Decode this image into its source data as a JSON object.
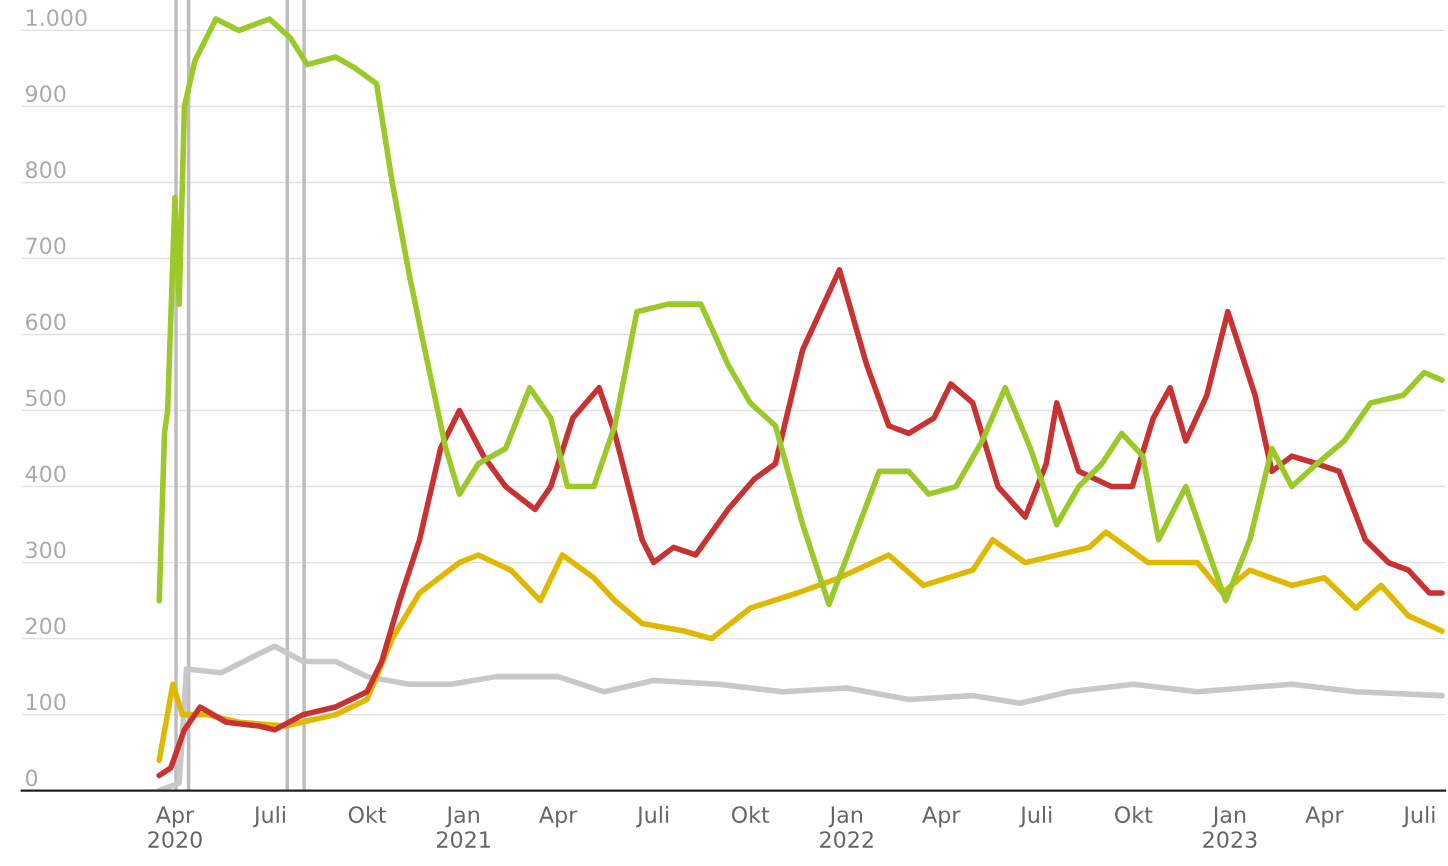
{
  "chart_data": {
    "type": "line",
    "xlim": [
      "2019-11-07",
      "2023-07-25"
    ],
    "ylim": [
      0,
      1040
    ],
    "yticks": [
      0,
      100,
      200,
      300,
      400,
      500,
      600,
      700,
      800,
      900,
      {
        "value": 1000,
        "label": "1.000"
      }
    ],
    "xticks": [
      {
        "value": "2020-04-01",
        "label": "Apr\n2020"
      },
      {
        "value": "2020-07-01",
        "label": "Juli"
      },
      {
        "value": "2020-10-01",
        "label": "Okt"
      },
      {
        "value": "2021-01-01",
        "label": "Jan\n2021"
      },
      {
        "value": "2021-04-01",
        "label": "Apr"
      },
      {
        "value": "2021-07-01",
        "label": "Juli"
      },
      {
        "value": "2021-10-01",
        "label": "Okt"
      },
      {
        "value": "2022-01-01",
        "label": "Jan\n2022"
      },
      {
        "value": "2022-04-01",
        "label": "Apr"
      },
      {
        "value": "2022-07-01",
        "label": "Juli"
      },
      {
        "value": "2022-10-01",
        "label": "Okt"
      },
      {
        "value": "2023-01-01",
        "label": "Jan\n2023"
      },
      {
        "value": "2023-04-01",
        "label": "Apr"
      },
      {
        "value": "2023-07-01",
        "label": "Juli"
      }
    ],
    "grid": "y",
    "line_style": "solid",
    "ref_lines": [
      {
        "axis": "x",
        "value": "2020-04-02",
        "color": "#bdbdbd"
      },
      {
        "axis": "x",
        "value": "2020-04-14",
        "color": "#bdbdbd"
      },
      {
        "axis": "x",
        "value": "2020-07-17",
        "color": "#bdbdbd"
      },
      {
        "axis": "x",
        "value": "2020-08-02",
        "color": "#bdbdbd"
      }
    ],
    "series": [
      {
        "color": "#c8c8c8",
        "x": [
          "2020-03-17",
          "2020-04-05",
          "2020-04-12",
          "2020-05-15",
          "2020-06-20",
          "2020-07-05",
          "2020-08-01",
          "2020-09-01",
          "2020-10-01",
          "2020-11-10",
          "2020-12-20",
          "2021-02-01",
          "2021-04-01",
          "2021-05-15",
          "2021-07-01",
          "2021-09-01",
          "2021-11-01",
          "2022-01-01",
          "2022-03-01",
          "2022-05-01",
          "2022-06-15",
          "2022-08-01",
          "2022-10-01",
          "2022-12-01",
          "2023-03-01",
          "2023-05-01",
          "2023-07-22"
        ],
        "values": [
          0,
          10,
          160,
          155,
          180,
          190,
          170,
          170,
          150,
          140,
          140,
          150,
          150,
          130,
          145,
          140,
          130,
          135,
          120,
          125,
          115,
          130,
          140,
          130,
          140,
          130,
          125
        ]
      },
      {
        "color": "#e0b800",
        "x": [
          "2020-03-17",
          "2020-03-30",
          "2020-04-08",
          "2020-05-01",
          "2020-06-01",
          "2020-07-15",
          "2020-09-01",
          "2020-10-01",
          "2020-10-25",
          "2020-11-20",
          "2020-12-28",
          "2021-01-15",
          "2021-02-15",
          "2021-03-15",
          "2021-04-05",
          "2021-05-05",
          "2021-05-25",
          "2021-06-20",
          "2021-07-30",
          "2021-08-25",
          "2021-10-01",
          "2021-11-15",
          "2021-12-25",
          "2022-02-10",
          "2022-03-15",
          "2022-05-01",
          "2022-05-20",
          "2022-06-20",
          "2022-08-20",
          "2022-09-05",
          "2022-10-15",
          "2022-12-01",
          "2022-12-25",
          "2023-01-20",
          "2023-03-01",
          "2023-04-01",
          "2023-05-01",
          "2023-05-25",
          "2023-06-20",
          "2023-07-22"
        ],
        "values": [
          40,
          140,
          100,
          100,
          90,
          85,
          100,
          120,
          200,
          260,
          300,
          310,
          290,
          250,
          310,
          280,
          250,
          220,
          210,
          200,
          240,
          260,
          280,
          310,
          270,
          290,
          330,
          300,
          320,
          340,
          300,
          300,
          260,
          290,
          270,
          280,
          240,
          270,
          230,
          210
        ]
      },
      {
        "color": "#c83232",
        "x": [
          "2020-03-17",
          "2020-03-28",
          "2020-04-10",
          "2020-04-25",
          "2020-05-20",
          "2020-06-20",
          "2020-07-05",
          "2020-08-01",
          "2020-09-01",
          "2020-10-01",
          "2020-10-15",
          "2020-11-01",
          "2020-11-20",
          "2020-12-10",
          "2020-12-28",
          "2021-01-20",
          "2021-02-10",
          "2021-03-10",
          "2021-03-25",
          "2021-04-15",
          "2021-05-10",
          "2021-05-25",
          "2021-06-20",
          "2021-07-01",
          "2021-07-20",
          "2021-08-10",
          "2021-09-10",
          "2021-10-05",
          "2021-10-25",
          "2021-11-20",
          "2021-12-10",
          "2021-12-25",
          "2022-01-20",
          "2022-02-10",
          "2022-03-01",
          "2022-03-25",
          "2022-04-10",
          "2022-05-01",
          "2022-05-25",
          "2022-06-20",
          "2022-07-10",
          "2022-07-20",
          "2022-08-10",
          "2022-09-10",
          "2022-09-30",
          "2022-10-20",
          "2022-11-05",
          "2022-11-20",
          "2022-12-10",
          "2022-12-30",
          "2023-01-25",
          "2023-02-10",
          "2023-03-01",
          "2023-03-25",
          "2023-04-15",
          "2023-05-10",
          "2023-06-01",
          "2023-06-20",
          "2023-07-10",
          "2023-07-22"
        ],
        "values": [
          20,
          30,
          80,
          110,
          90,
          85,
          80,
          100,
          110,
          130,
          170,
          250,
          330,
          450,
          500,
          440,
          400,
          370,
          400,
          490,
          530,
          470,
          330,
          300,
          320,
          310,
          370,
          410,
          430,
          580,
          640,
          685,
          560,
          480,
          470,
          490,
          535,
          510,
          400,
          360,
          430,
          510,
          420,
          400,
          400,
          490,
          530,
          460,
          520,
          630,
          520,
          420,
          440,
          430,
          420,
          330,
          300,
          290,
          260,
          260
        ]
      },
      {
        "color": "#9cc92a",
        "x": [
          "2020-03-17",
          "2020-03-22",
          "2020-03-25",
          "2020-04-01",
          "2020-04-05",
          "2020-04-10",
          "2020-04-20",
          "2020-05-10",
          "2020-06-01",
          "2020-06-30",
          "2020-07-20",
          "2020-08-05",
          "2020-09-01",
          "2020-09-20",
          "2020-10-10",
          "2020-10-25",
          "2020-11-10",
          "2020-11-25",
          "2020-12-15",
          "2020-12-28",
          "2021-01-15",
          "2021-02-10",
          "2021-03-05",
          "2021-03-25",
          "2021-04-10",
          "2021-05-05",
          "2021-05-25",
          "2021-06-15",
          "2021-07-15",
          "2021-08-15",
          "2021-09-10",
          "2021-10-01",
          "2021-10-25",
          "2021-11-20",
          "2021-12-15",
          "2022-01-10",
          "2022-02-01",
          "2022-03-01",
          "2022-03-20",
          "2022-04-15",
          "2022-05-10",
          "2022-06-01",
          "2022-06-25",
          "2022-07-20",
          "2022-08-10",
          "2022-09-01",
          "2022-09-20",
          "2022-10-10",
          "2022-10-25",
          "2022-11-20",
          "2022-12-10",
          "2022-12-28",
          "2023-01-20",
          "2023-02-10",
          "2023-03-01",
          "2023-03-25",
          "2023-04-20",
          "2023-05-15",
          "2023-06-15",
          "2023-07-05",
          "2023-07-22"
        ],
        "values": [
          250,
          470,
          500,
          780,
          640,
          900,
          960,
          1015,
          1000,
          1015,
          990,
          955,
          965,
          950,
          930,
          800,
          680,
          580,
          450,
          390,
          430,
          450,
          530,
          490,
          400,
          400,
          480,
          630,
          640,
          640,
          560,
          510,
          480,
          350,
          245,
          340,
          420,
          420,
          390,
          400,
          460,
          530,
          450,
          350,
          400,
          430,
          470,
          440,
          330,
          400,
          320,
          250,
          330,
          450,
          400,
          430,
          460,
          510,
          520,
          550,
          540
        ]
      }
    ]
  }
}
